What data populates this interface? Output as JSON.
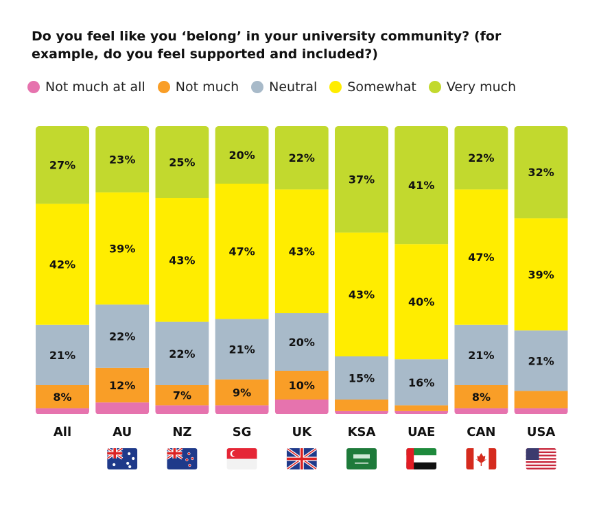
{
  "chart_data": {
    "type": "bar",
    "stacked": true,
    "title": "Do you feel like you ‘belong’ in your university community? (for example, do you feel supported and included?)",
    "categories": [
      "All",
      "AU",
      "NZ",
      "SG",
      "UK",
      "KSA",
      "UAE",
      "CAN",
      "USA"
    ],
    "flags": [
      null,
      "australia-flag",
      "new-zealand-flag",
      "singapore-flag",
      "uk-flag",
      "saudi-arabia-flag",
      "uae-flag",
      "canada-flag",
      "usa-flag"
    ],
    "legend_position": "top-left",
    "grid": false,
    "ylim": [
      0,
      100
    ],
    "series": [
      {
        "name": "Not much at all",
        "color": "#e673ae",
        "values": [
          2,
          4,
          3,
          3,
          5,
          1,
          1,
          2,
          2
        ]
      },
      {
        "name": "Not much",
        "color": "#f99e27",
        "values": [
          8,
          12,
          7,
          9,
          10,
          4,
          2,
          8,
          6
        ]
      },
      {
        "name": "Neutral",
        "color": "#a8bac9",
        "values": [
          21,
          22,
          22,
          21,
          20,
          15,
          16,
          21,
          21
        ]
      },
      {
        "name": "Somewhat",
        "color": "#ffed00",
        "values": [
          42,
          39,
          43,
          47,
          43,
          43,
          40,
          47,
          39
        ]
      },
      {
        "name": "Very much",
        "color": "#c2d92e",
        "values": [
          27,
          23,
          25,
          20,
          22,
          37,
          41,
          22,
          32
        ]
      }
    ],
    "label_min": 7
  }
}
